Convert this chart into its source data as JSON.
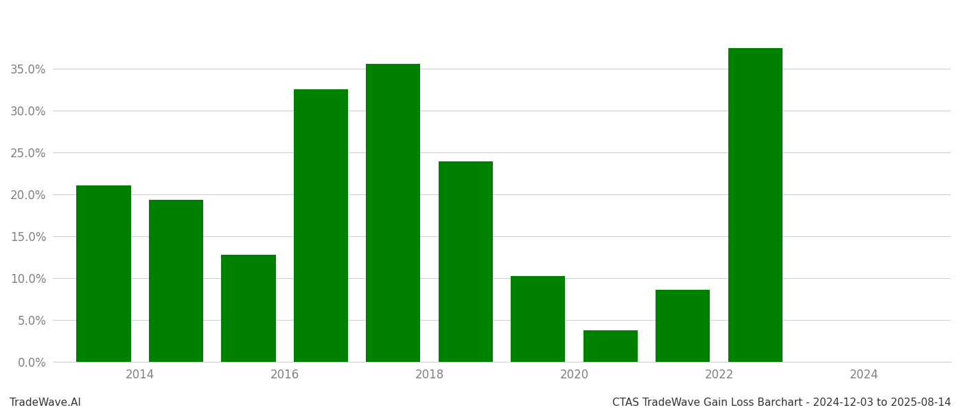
{
  "years": [
    2013,
    2014,
    2015,
    2016,
    2017,
    2018,
    2019,
    2020,
    2021,
    2022,
    2023
  ],
  "values": [
    0.211,
    0.194,
    0.128,
    0.326,
    0.356,
    0.24,
    0.103,
    0.038,
    0.086,
    0.375,
    0.0
  ],
  "bar_color": "#008000",
  "background_color": "#ffffff",
  "tick_label_color": "#808080",
  "grid_color": "#d0d0d0",
  "title_text": "CTAS TradeWave Gain Loss Barchart - 2024-12-03 to 2025-08-14",
  "watermark_text": "TradeWave.AI",
  "xlim": [
    2012.3,
    2024.7
  ],
  "ylim": [
    0.0,
    0.42
  ],
  "yticks": [
    0.0,
    0.05,
    0.1,
    0.15,
    0.2,
    0.25,
    0.3,
    0.35
  ],
  "xticks": [
    2013.5,
    2015.5,
    2017.5,
    2019.5,
    2021.5,
    2023.5
  ],
  "xtick_labels": [
    "2014",
    "2016",
    "2018",
    "2020",
    "2022",
    "2024"
  ],
  "bar_width": 0.75,
  "figsize": [
    14.0,
    6.0
  ],
  "dpi": 100
}
